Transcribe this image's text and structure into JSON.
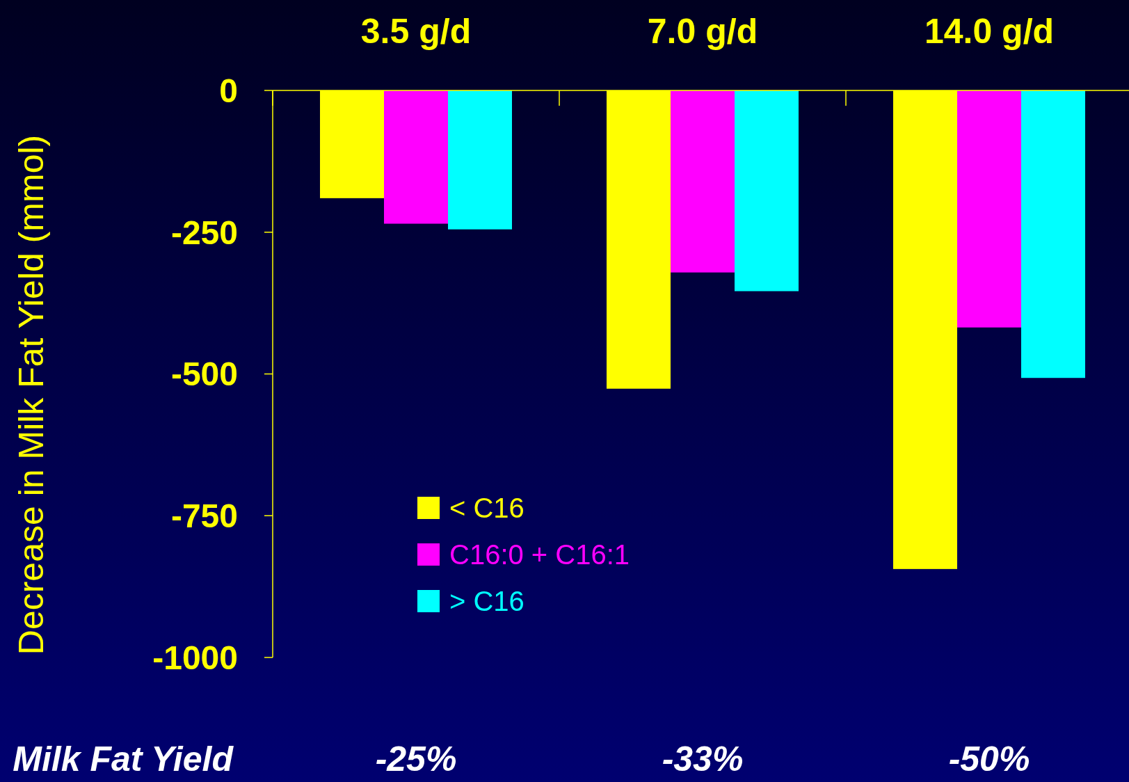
{
  "chart_data": {
    "type": "bar",
    "ylabel": "Decrease in Milk Fat Yield (mmol)",
    "categories": [
      "3.5 g/d",
      "7.0 g/d",
      "14.0 g/d"
    ],
    "series": [
      {
        "name": "< C16",
        "color": "#ffff00",
        "values": [
          -190,
          -526,
          -844
        ]
      },
      {
        "name": "C16:0 + C16:1",
        "color": "#ff00ff",
        "values": [
          -235,
          -321,
          -418
        ]
      },
      {
        "name": "> C16",
        "color": "#00ffff",
        "values": [
          -245,
          -354,
          -507
        ]
      }
    ],
    "ylim": [
      -1000,
      0
    ],
    "yticks": [
      0,
      -250,
      -500,
      -750,
      -1000
    ],
    "grid": false,
    "legend": "bottom left",
    "annotations": [
      "Milk Fat Yield",
      "-25%",
      "-33%",
      "-50%"
    ]
  }
}
